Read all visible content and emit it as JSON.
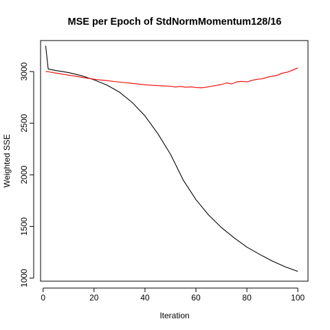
{
  "chart_data": {
    "type": "line",
    "title": "MSE per Epoch of StdNormMomentum128/16",
    "xlabel": "Iteration",
    "ylabel": "Weighted SSE",
    "xlim": [
      -1,
      104
    ],
    "ylim": [
      970,
      3300
    ],
    "xticks": [
      0,
      20,
      40,
      60,
      80,
      100
    ],
    "yticks": [
      1000,
      1500,
      2000,
      2500,
      3000
    ],
    "grid": false,
    "series": [
      {
        "color": "#000000",
        "x": [
          1,
          2,
          5,
          10,
          15,
          20,
          25,
          30,
          35,
          40,
          45,
          50,
          55,
          60,
          65,
          70,
          75,
          80,
          85,
          90,
          95,
          100
        ],
        "y": [
          3250,
          3025,
          3010,
          2990,
          2960,
          2920,
          2870,
          2800,
          2700,
          2570,
          2400,
          2200,
          1950,
          1760,
          1610,
          1490,
          1390,
          1300,
          1230,
          1165,
          1110,
          1065
        ]
      },
      {
        "color": "#ff0000",
        "x": [
          1,
          2,
          5,
          10,
          15,
          20,
          25,
          30,
          35,
          40,
          42,
          44,
          46,
          48,
          50,
          52,
          54,
          56,
          58,
          60,
          62,
          64,
          66,
          68,
          70,
          72,
          74,
          76,
          78,
          80,
          82,
          84,
          86,
          88,
          90,
          92,
          94,
          96,
          98,
          100
        ],
        "y": [
          3000,
          2998,
          2985,
          2965,
          2945,
          2925,
          2912,
          2898,
          2885,
          2872,
          2868,
          2865,
          2862,
          2860,
          2858,
          2850,
          2856,
          2848,
          2852,
          2845,
          2842,
          2848,
          2858,
          2865,
          2875,
          2890,
          2880,
          2900,
          2905,
          2900,
          2915,
          2925,
          2930,
          2945,
          2955,
          2965,
          2985,
          2995,
          3015,
          3035
        ]
      }
    ]
  }
}
